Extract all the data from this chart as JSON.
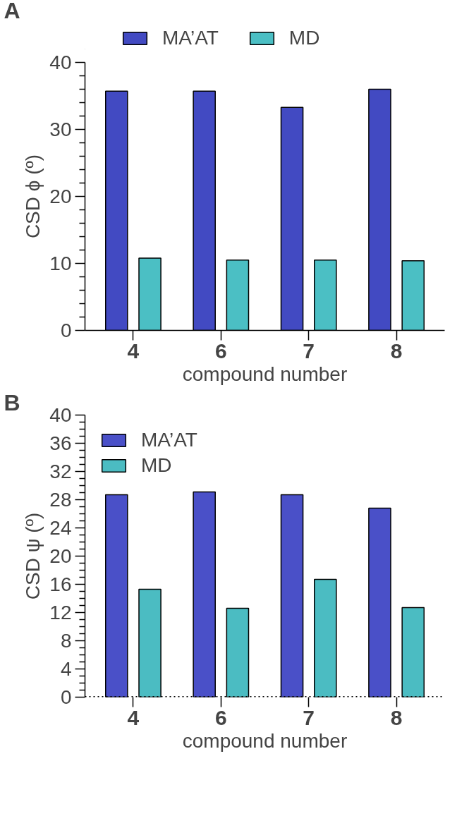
{
  "chart_data": [
    {
      "type": "bar",
      "annotations": [
        "A"
      ],
      "xlabel": "compound number",
      "ylabel": "CSD ϕ (º)",
      "categories": [
        "4",
        "6",
        "7",
        "8"
      ],
      "series": [
        {
          "name": "MA’AT",
          "color": "#424ac2",
          "values": [
            35.7,
            35.7,
            33.3,
            36.0
          ]
        },
        {
          "name": "MD",
          "color": "#4bbfc4",
          "values": [
            10.8,
            10.5,
            10.5,
            10.4
          ]
        }
      ],
      "ylim": [
        0,
        40
      ],
      "yticks": [
        0,
        {
          "value": 2,
          "label": null
        },
        {
          "value": 4,
          "label": null
        },
        {
          "value": 6,
          "label": null
        },
        {
          "value": 8,
          "label": null
        },
        10,
        {
          "value": 12,
          "label": null
        },
        {
          "value": 14,
          "label": null
        },
        {
          "value": 16,
          "label": null
        },
        {
          "value": 18,
          "label": null
        },
        20,
        {
          "value": 22,
          "label": null
        },
        {
          "value": 24,
          "label": null
        },
        {
          "value": 26,
          "label": null
        },
        {
          "value": 28,
          "label": null
        },
        30,
        {
          "value": 32,
          "label": null
        },
        {
          "value": 34,
          "label": null
        },
        {
          "value": 36,
          "label": null
        },
        {
          "value": 38,
          "label": null
        },
        40
      ],
      "grid": false,
      "legend": "top"
    },
    {
      "type": "bar",
      "annotations": [
        "B"
      ],
      "xlabel": "compound number",
      "ylabel": "CSD ψ (º)",
      "categories": [
        "4",
        "6",
        "7",
        "8"
      ],
      "series": [
        {
          "name": "MA’AT",
          "color": "#4a50c8",
          "values": [
            28.7,
            29.1,
            28.7,
            26.8
          ]
        },
        {
          "name": "MD",
          "color": "#4bbcc2",
          "values": [
            15.3,
            12.6,
            16.7,
            12.7
          ]
        }
      ],
      "ylim": [
        0,
        40
      ],
      "yticks": [
        0,
        {
          "value": 1,
          "label": null
        },
        {
          "value": 2,
          "label": null
        },
        {
          "value": 3,
          "label": null
        },
        4,
        {
          "value": 5,
          "label": null
        },
        {
          "value": 6,
          "label": null
        },
        {
          "value": 7,
          "label": null
        },
        8,
        {
          "value": 9,
          "label": null
        },
        {
          "value": 10,
          "label": null
        },
        {
          "value": 11,
          "label": null
        },
        12,
        {
          "value": 13,
          "label": null
        },
        {
          "value": 14,
          "label": null
        },
        {
          "value": 15,
          "label": null
        },
        16,
        {
          "value": 17,
          "label": null
        },
        {
          "value": 18,
          "label": null
        },
        {
          "value": 19,
          "label": null
        },
        20,
        {
          "value": 21,
          "label": null
        },
        {
          "value": 22,
          "label": null
        },
        {
          "value": 23,
          "label": null
        },
        24,
        {
          "value": 25,
          "label": null
        },
        {
          "value": 26,
          "label": null
        },
        {
          "value": 27,
          "label": null
        },
        28,
        {
          "value": 29,
          "label": null
        },
        {
          "value": 30,
          "label": null
        },
        {
          "value": 31,
          "label": null
        },
        32,
        {
          "value": 33,
          "label": null
        },
        {
          "value": 34,
          "label": null
        },
        {
          "value": 35,
          "label": null
        },
        36,
        {
          "value": 37,
          "label": null
        },
        {
          "value": 38,
          "label": null
        },
        {
          "value": 39,
          "label": null
        },
        40
      ],
      "ref_lines": [
        {
          "axis": "y",
          "value": 0,
          "line_style": "dotted"
        }
      ],
      "grid": false,
      "legend": "top left"
    }
  ]
}
